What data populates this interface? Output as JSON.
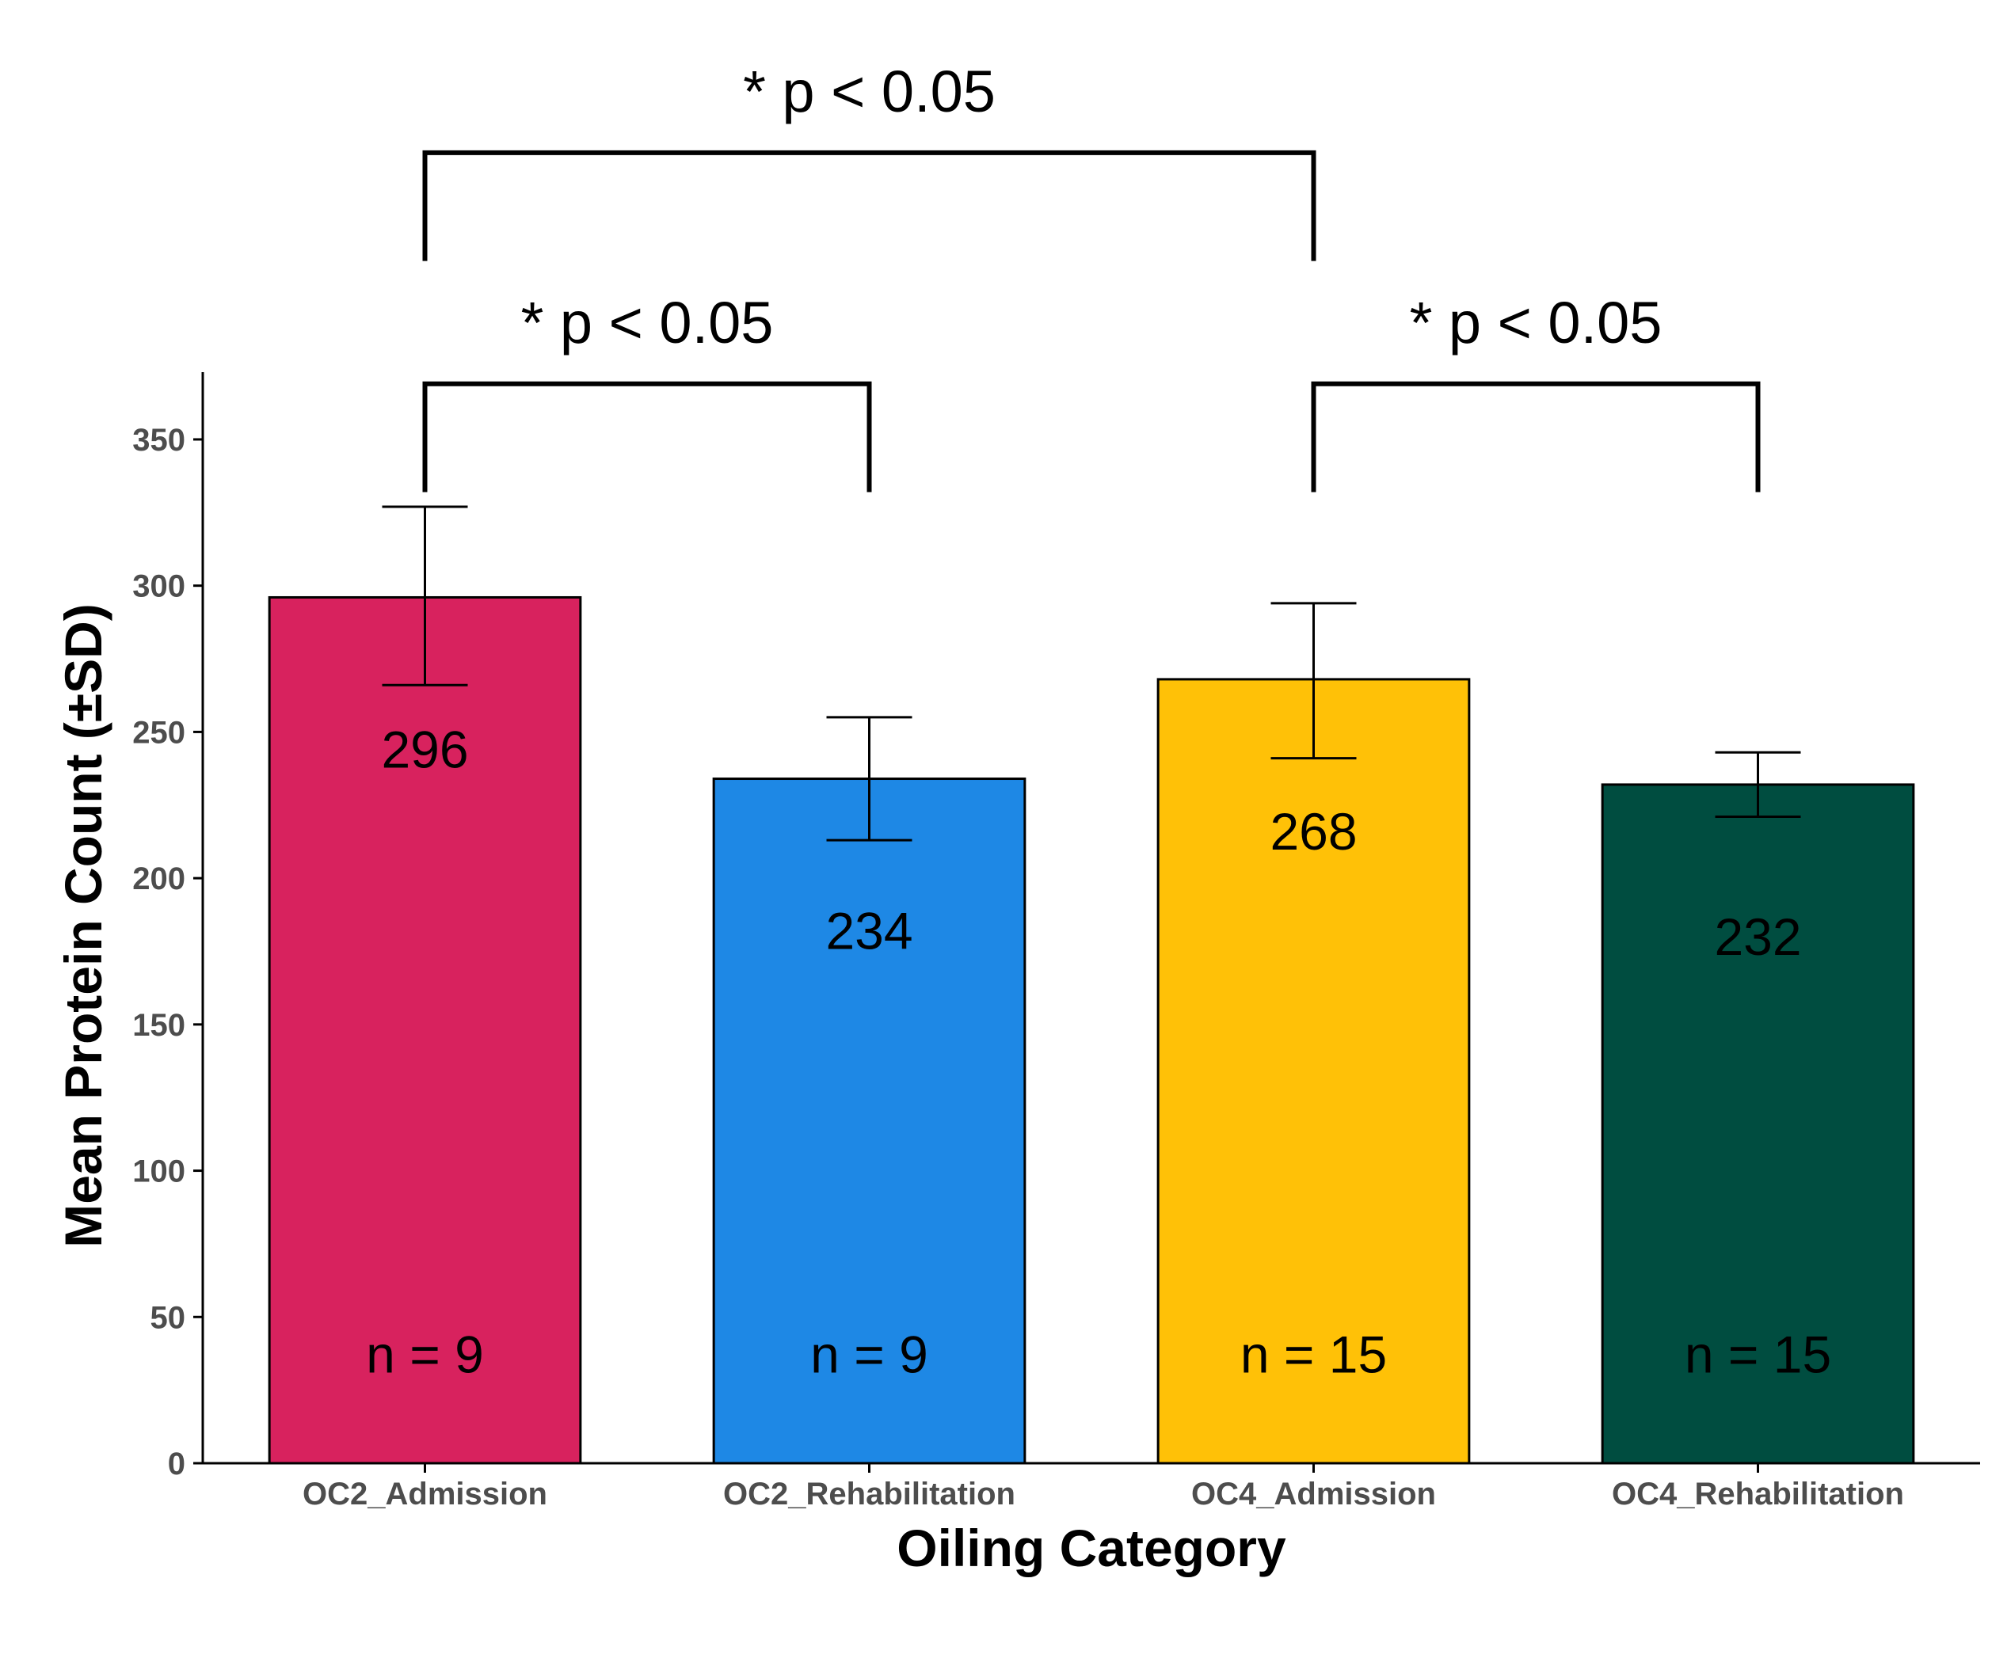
{
  "chart_data": {
    "type": "bar",
    "title": "",
    "xlabel": "Oiling Category",
    "ylabel": "Mean Protein Count (±SD)",
    "categories": [
      "OC2_Admission",
      "OC2_Rehabilitation",
      "OC4_Admission",
      "OC4_Rehabilitation"
    ],
    "values": [
      296,
      234,
      268,
      232
    ],
    "value_labels": [
      "296",
      "234",
      "268",
      "232"
    ],
    "sd_low": [
      266,
      213,
      241,
      221
    ],
    "sd_high": [
      327,
      255,
      294,
      243
    ],
    "n_labels": [
      "n = 9",
      "n = 9",
      "n = 15",
      "n = 15"
    ],
    "n_label_y": 31,
    "colors": [
      "#D8225E",
      "#1E88E5",
      "#FFC107",
      "#004D40"
    ],
    "ylim": [
      0,
      373
    ],
    "yticks": [
      0,
      50,
      100,
      150,
      200,
      250,
      300,
      350
    ],
    "ytick_labels": [
      "0",
      "50",
      "100",
      "150",
      "200",
      "250",
      "300",
      "350"
    ],
    "grid": false,
    "significance": [
      {
        "from": 0,
        "to": 2,
        "label": "* p < 0.05",
        "y": 448,
        "drop_to": 411
      },
      {
        "from": 0,
        "to": 1,
        "label": "* p < 0.05",
        "y": 369,
        "drop_to": 332
      },
      {
        "from": 2,
        "to": 3,
        "label": "* p < 0.05",
        "y": 369,
        "drop_to": 332
      }
    ]
  }
}
